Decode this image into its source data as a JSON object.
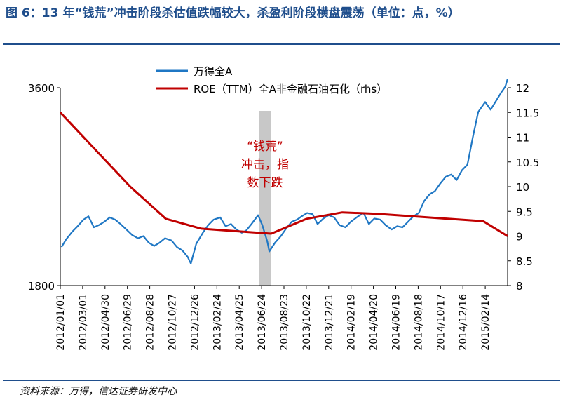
{
  "header": {
    "title": "图 6：13 年“钱荒”冲击阶段杀估值跌幅较大，杀盈利阶段横盘震荡（单位：点，%）"
  },
  "footer": {
    "source": "资料来源：万得，信达证券研发中心"
  },
  "colors": {
    "accent": "#1f4e8c",
    "index_line": "#1f77c4",
    "roe_line": "#c00000",
    "shade": "#c8c8c8",
    "annotation": "#c00000"
  },
  "chart_data": {
    "type": "line",
    "x_tick_labels": [
      "2012/01/01",
      "2012/03/01",
      "2012/04/30",
      "2012/06/29",
      "2012/08/28",
      "2012/10/27",
      "2012/12/26",
      "2013/02/24",
      "2013/04/25",
      "2013/06/24",
      "2013/08/23",
      "2013/10/22",
      "2013/12/21",
      "2014/02/19",
      "2014/04/20",
      "2014/06/19",
      "2014/08/18",
      "2014/10/17",
      "2014/12/16",
      "2015/02/14"
    ],
    "x_range": [
      "2012/01/01",
      "2015/03/04"
    ],
    "y_left": {
      "ticks": [
        "1800",
        "3600"
      ],
      "range": [
        1800,
        3600
      ]
    },
    "y_right": {
      "ticks": [
        "8",
        "8.5",
        "9",
        "9.5",
        "10",
        "10.5",
        "11",
        "11.5",
        "12"
      ],
      "range": [
        8,
        12
      ]
    },
    "legend_position": "top-center",
    "shaded_period": [
      "2013/05/30",
      "2013/06/30"
    ],
    "annotation": {
      "lines": [
        "“钱荒”",
        "冲击，指",
        "数下跌"
      ]
    },
    "series": [
      {
        "name": "万得全A",
        "axis": "left",
        "points": [
          [
            "2012/01/04",
            2150
          ],
          [
            "2012/01/16",
            2220
          ],
          [
            "2012/02/01",
            2290
          ],
          [
            "2012/02/15",
            2340
          ],
          [
            "2012/03/01",
            2400
          ],
          [
            "2012/03/14",
            2430
          ],
          [
            "2012/03/28",
            2330
          ],
          [
            "2012/04/10",
            2350
          ],
          [
            "2012/04/24",
            2380
          ],
          [
            "2012/05/08",
            2420
          ],
          [
            "2012/05/22",
            2400
          ],
          [
            "2012/06/05",
            2360
          ],
          [
            "2012/06/20",
            2310
          ],
          [
            "2012/07/05",
            2260
          ],
          [
            "2012/07/20",
            2230
          ],
          [
            "2012/08/03",
            2250
          ],
          [
            "2012/08/17",
            2190
          ],
          [
            "2012/08/31",
            2160
          ],
          [
            "2012/09/14",
            2190
          ],
          [
            "2012/09/28",
            2230
          ],
          [
            "2012/10/15",
            2210
          ],
          [
            "2012/10/29",
            2150
          ],
          [
            "2012/11/12",
            2120
          ],
          [
            "2012/11/26",
            2060
          ],
          [
            "2012/12/04",
            2000
          ],
          [
            "2012/12/18",
            2180
          ],
          [
            "2013/01/04",
            2280
          ],
          [
            "2013/01/18",
            2350
          ],
          [
            "2013/02/01",
            2400
          ],
          [
            "2013/02/18",
            2420
          ],
          [
            "2013/03/04",
            2340
          ],
          [
            "2013/03/18",
            2360
          ],
          [
            "2013/04/01",
            2310
          ],
          [
            "2013/04/15",
            2280
          ],
          [
            "2013/04/26",
            2300
          ],
          [
            "2013/05/10",
            2360
          ],
          [
            "2013/05/27",
            2440
          ],
          [
            "2013/06/07",
            2350
          ],
          [
            "2013/06/20",
            2200
          ],
          [
            "2013/06/25",
            2110
          ],
          [
            "2013/07/10",
            2190
          ],
          [
            "2013/07/25",
            2250
          ],
          [
            "2013/08/08",
            2320
          ],
          [
            "2013/08/22",
            2380
          ],
          [
            "2013/09/05",
            2400
          ],
          [
            "2013/09/17",
            2430
          ],
          [
            "2013/10/01",
            2460
          ],
          [
            "2013/10/15",
            2450
          ],
          [
            "2013/10/28",
            2360
          ],
          [
            "2013/11/12",
            2410
          ],
          [
            "2013/11/26",
            2440
          ],
          [
            "2013/12/10",
            2420
          ],
          [
            "2013/12/24",
            2350
          ],
          [
            "2014/01/08",
            2330
          ],
          [
            "2014/01/22",
            2380
          ],
          [
            "2014/02/10",
            2430
          ],
          [
            "2014/02/24",
            2460
          ],
          [
            "2014/03/10",
            2360
          ],
          [
            "2014/03/24",
            2410
          ],
          [
            "2014/04/08",
            2400
          ],
          [
            "2014/04/22",
            2350
          ],
          [
            "2014/05/08",
            2310
          ],
          [
            "2014/05/22",
            2340
          ],
          [
            "2014/06/05",
            2330
          ],
          [
            "2014/06/19",
            2380
          ],
          [
            "2014/07/03",
            2430
          ],
          [
            "2014/07/17",
            2460
          ],
          [
            "2014/07/31",
            2570
          ],
          [
            "2014/08/14",
            2630
          ],
          [
            "2014/08/28",
            2660
          ],
          [
            "2014/09/11",
            2730
          ],
          [
            "2014/09/25",
            2790
          ],
          [
            "2014/10/09",
            2810
          ],
          [
            "2014/10/23",
            2760
          ],
          [
            "2014/11/06",
            2850
          ],
          [
            "2014/11/20",
            2900
          ],
          [
            "2014/12/04",
            3150
          ],
          [
            "2014/12/18",
            3380
          ],
          [
            "2015/01/05",
            3470
          ],
          [
            "2015/01/19",
            3400
          ],
          [
            "2015/02/02",
            3480
          ],
          [
            "2015/02/16",
            3560
          ],
          [
            "2015/02/26",
            3610
          ],
          [
            "2015/03/04",
            3680
          ]
        ]
      },
      {
        "name": "ROE（TTM）全A非金融石油石化（rhs）",
        "axis": "right",
        "points": [
          [
            "2012/01/01",
            11.5
          ],
          [
            "2012/06/30",
            10.0
          ],
          [
            "2012/09/30",
            9.35
          ],
          [
            "2012/12/31",
            9.15
          ],
          [
            "2013/03/31",
            9.1
          ],
          [
            "2013/06/30",
            9.05
          ],
          [
            "2013/09/30",
            9.35
          ],
          [
            "2013/12/31",
            9.48
          ],
          [
            "2014/03/31",
            9.45
          ],
          [
            "2014/06/30",
            9.4
          ],
          [
            "2014/09/30",
            9.35
          ],
          [
            "2014/12/31",
            9.3
          ],
          [
            "2015/03/04",
            9.0
          ]
        ]
      }
    ]
  }
}
